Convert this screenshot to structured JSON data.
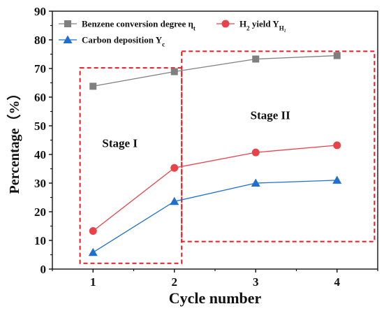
{
  "chart_data": {
    "type": "line",
    "xlabel": "Cycle number",
    "ylabel": "Percentage（%）",
    "x": [
      1,
      2,
      3,
      4
    ],
    "xlim": [
      0.5,
      4.5
    ],
    "ylim": [
      0,
      90
    ],
    "yticks": [
      0,
      10,
      20,
      30,
      40,
      50,
      60,
      70,
      80,
      90
    ],
    "legend_position": "top-left",
    "grid": false,
    "series": [
      {
        "name": "Benzene conversion degree η",
        "name_sub": "t",
        "values": [
          63.8,
          68.9,
          73.3,
          74.5
        ],
        "color": "#7f7f7f",
        "marker": "square"
      },
      {
        "name": "H",
        "name_sub": "2",
        "name_suffix": " yield Y",
        "name_suffix_sub": "H₂",
        "values": [
          13.3,
          35.3,
          40.7,
          43.2
        ],
        "color": "#e8434a",
        "marker": "circle"
      },
      {
        "name": "Carbon deposition Y",
        "name_sub": "c",
        "values": [
          5.8,
          23.6,
          30.0,
          31.0
        ],
        "color": "#1f6fd1",
        "marker": "triangle"
      }
    ],
    "annotations": [
      {
        "text": "Stage I",
        "x": 1.33,
        "y": 42.6
      },
      {
        "text": "Stage II",
        "x": 3.18,
        "y": 52.3
      }
    ],
    "regions": [
      {
        "x0": 0.84,
        "x1": 2.09,
        "y0": 2,
        "y1": 70.2,
        "color": "#e21f26"
      },
      {
        "x0": 2.09,
        "x1": 4.46,
        "y0": 9.6,
        "y1": 76.0,
        "color": "#e21f26"
      }
    ]
  }
}
